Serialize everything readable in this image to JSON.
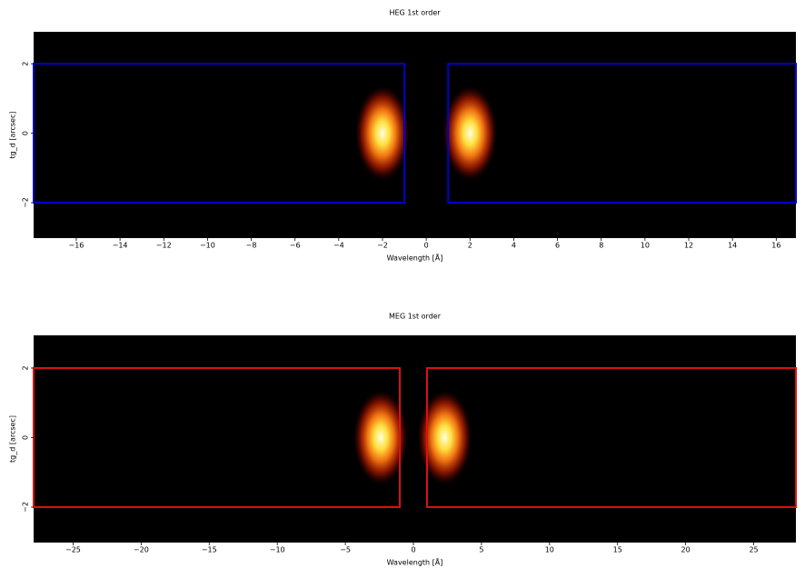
{
  "chart_data": [
    {
      "type": "heatmap",
      "title": "HEG 1st order",
      "x_label": "Wavelength [Å]",
      "y_label": "tg_d [arcsec]",
      "xlim": [
        -17.95,
        16.9
      ],
      "ylim": [
        -3.02,
        2.92
      ],
      "xticks": [
        {
          "value": -16,
          "label": "−16"
        },
        {
          "value": -14,
          "label": "−14"
        },
        {
          "value": -12,
          "label": "−12"
        },
        {
          "value": -10,
          "label": "−10"
        },
        {
          "value": -8,
          "label": "−8"
        },
        {
          "value": -6,
          "label": "−6"
        },
        {
          "value": -4,
          "label": "−4"
        },
        {
          "value": -2,
          "label": "−2"
        },
        0,
        2,
        4,
        6,
        8,
        10,
        12,
        14,
        16
      ],
      "yticks": [
        {
          "value": -2,
          "label": "−2"
        },
        0,
        2
      ],
      "region_color": "#0000cc",
      "regions": [
        {
          "x": [
            -17.95,
            -1
          ],
          "y": [
            -2,
            2
          ]
        },
        {
          "x": [
            1,
            16.9
          ],
          "y": [
            -2,
            2
          ]
        }
      ],
      "peaks": [
        {
          "x": -2,
          "y": 0
        },
        {
          "x": 2,
          "y": 0
        }
      ]
    },
    {
      "type": "heatmap",
      "title": "MEG 1st order",
      "x_label": "Wavelength [Å]",
      "y_label": "tg_d [arcsec]",
      "xlim": [
        -27.9,
        28.1
      ],
      "ylim": [
        -3.02,
        2.94
      ],
      "xticks": [
        {
          "value": -25,
          "label": "−25"
        },
        {
          "value": -20,
          "label": "−20"
        },
        {
          "value": -15,
          "label": "−15"
        },
        {
          "value": -10,
          "label": "−10"
        },
        {
          "value": -5,
          "label": "−5"
        },
        0,
        5,
        10,
        15,
        20,
        25
      ],
      "yticks": [
        {
          "value": -2,
          "label": "−2"
        },
        0,
        2
      ],
      "region_color": "#dd1111",
      "regions": [
        {
          "x": [
            -27.9,
            -1
          ],
          "y": [
            -2,
            2
          ]
        },
        {
          "x": [
            1,
            28.1
          ],
          "y": [
            -2,
            2
          ]
        }
      ],
      "peaks": [
        {
          "x": -2.4,
          "y": 0
        },
        {
          "x": 2.3,
          "y": 0
        }
      ]
    }
  ]
}
